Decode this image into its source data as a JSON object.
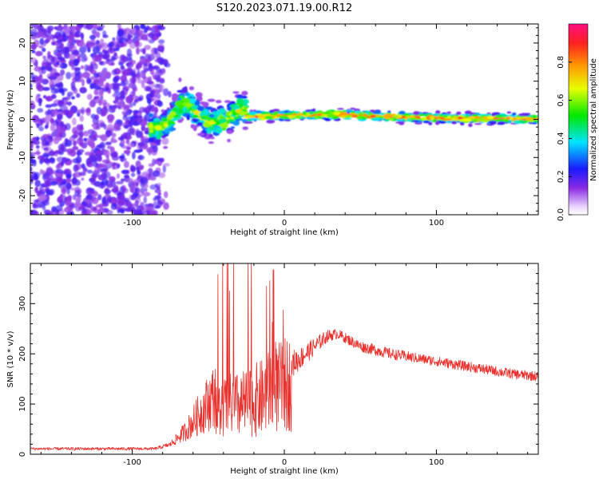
{
  "title": "S120.2023.071.19.00.R12",
  "colors": {
    "snr_line": "#e8302c",
    "spectrum_peak": "#ff2020",
    "axis": "#000000"
  },
  "chart_data": [
    {
      "type": "heatmap",
      "name": "spectrogram",
      "xlabel": "Height of straight line (km)",
      "ylabel": "Frequency (Hz)",
      "xlim": [
        -167,
        167
      ],
      "ylim": [
        -25,
        25
      ],
      "x_ticks": [
        -100,
        0,
        100
      ],
      "y_ticks": [
        -20,
        -10,
        0,
        10,
        20
      ],
      "x_tick_labels": [
        "-100",
        "0",
        "100"
      ],
      "y_tick_labels": [
        "-20",
        "-10",
        "0",
        "10",
        "20"
      ],
      "colorbar": {
        "label": "Normalized spectral amplitude",
        "range": [
          0,
          1
        ],
        "ticks": [
          0.0,
          0.2,
          0.4,
          0.6,
          0.8
        ],
        "tick_labels": [
          "0.0",
          "0.2",
          "0.4",
          "0.6",
          "0.8"
        ],
        "colormap": "rainbow-white"
      },
      "features": [
        {
          "region": "noise",
          "x_range": [
            -167,
            -80
          ],
          "freq_range": [
            -25,
            25
          ],
          "amplitude": 0.1
        },
        {
          "region": "turbulent",
          "x_range": [
            -88,
            -25
          ],
          "freq_center": 0,
          "freq_spread": 4,
          "amplitude": 0.5
        },
        {
          "region": "stable_band",
          "x_range": [
            -25,
            167
          ],
          "freq_center": 0.5,
          "freq_spread": 1,
          "amplitude": 0.95
        }
      ]
    },
    {
      "type": "line",
      "name": "snr",
      "xlabel": "Height of straight line (km)",
      "ylabel": "SNR (10 * v/v)",
      "xlim": [
        -167,
        167
      ],
      "ylim": [
        0,
        380
      ],
      "x_ticks": [
        -100,
        0,
        100
      ],
      "y_ticks": [
        0,
        100,
        200,
        300
      ],
      "x_tick_labels": [
        "-100",
        "0",
        "100"
      ],
      "y_tick_labels": [
        "0",
        "100",
        "200",
        "300"
      ],
      "envelope": {
        "x": [
          -167,
          -140,
          -110,
          -85,
          -75,
          -65,
          -55,
          -45,
          -38,
          -30,
          -22,
          -15,
          -8,
          0,
          10,
          20,
          28,
          35,
          50,
          70,
          90,
          110,
          130,
          150,
          167
        ],
        "baseline": [
          10,
          10,
          10,
          10,
          18,
          40,
          70,
          100,
          120,
          120,
          130,
          140,
          160,
          170,
          190,
          215,
          235,
          240,
          215,
          200,
          190,
          180,
          170,
          160,
          155
        ],
        "noise": [
          6,
          6,
          6,
          6,
          10,
          40,
          90,
          140,
          160,
          160,
          170,
          150,
          110,
          70,
          45,
          35,
          25,
          20,
          22,
          22,
          20,
          20,
          20,
          20,
          20
        ]
      }
    }
  ]
}
